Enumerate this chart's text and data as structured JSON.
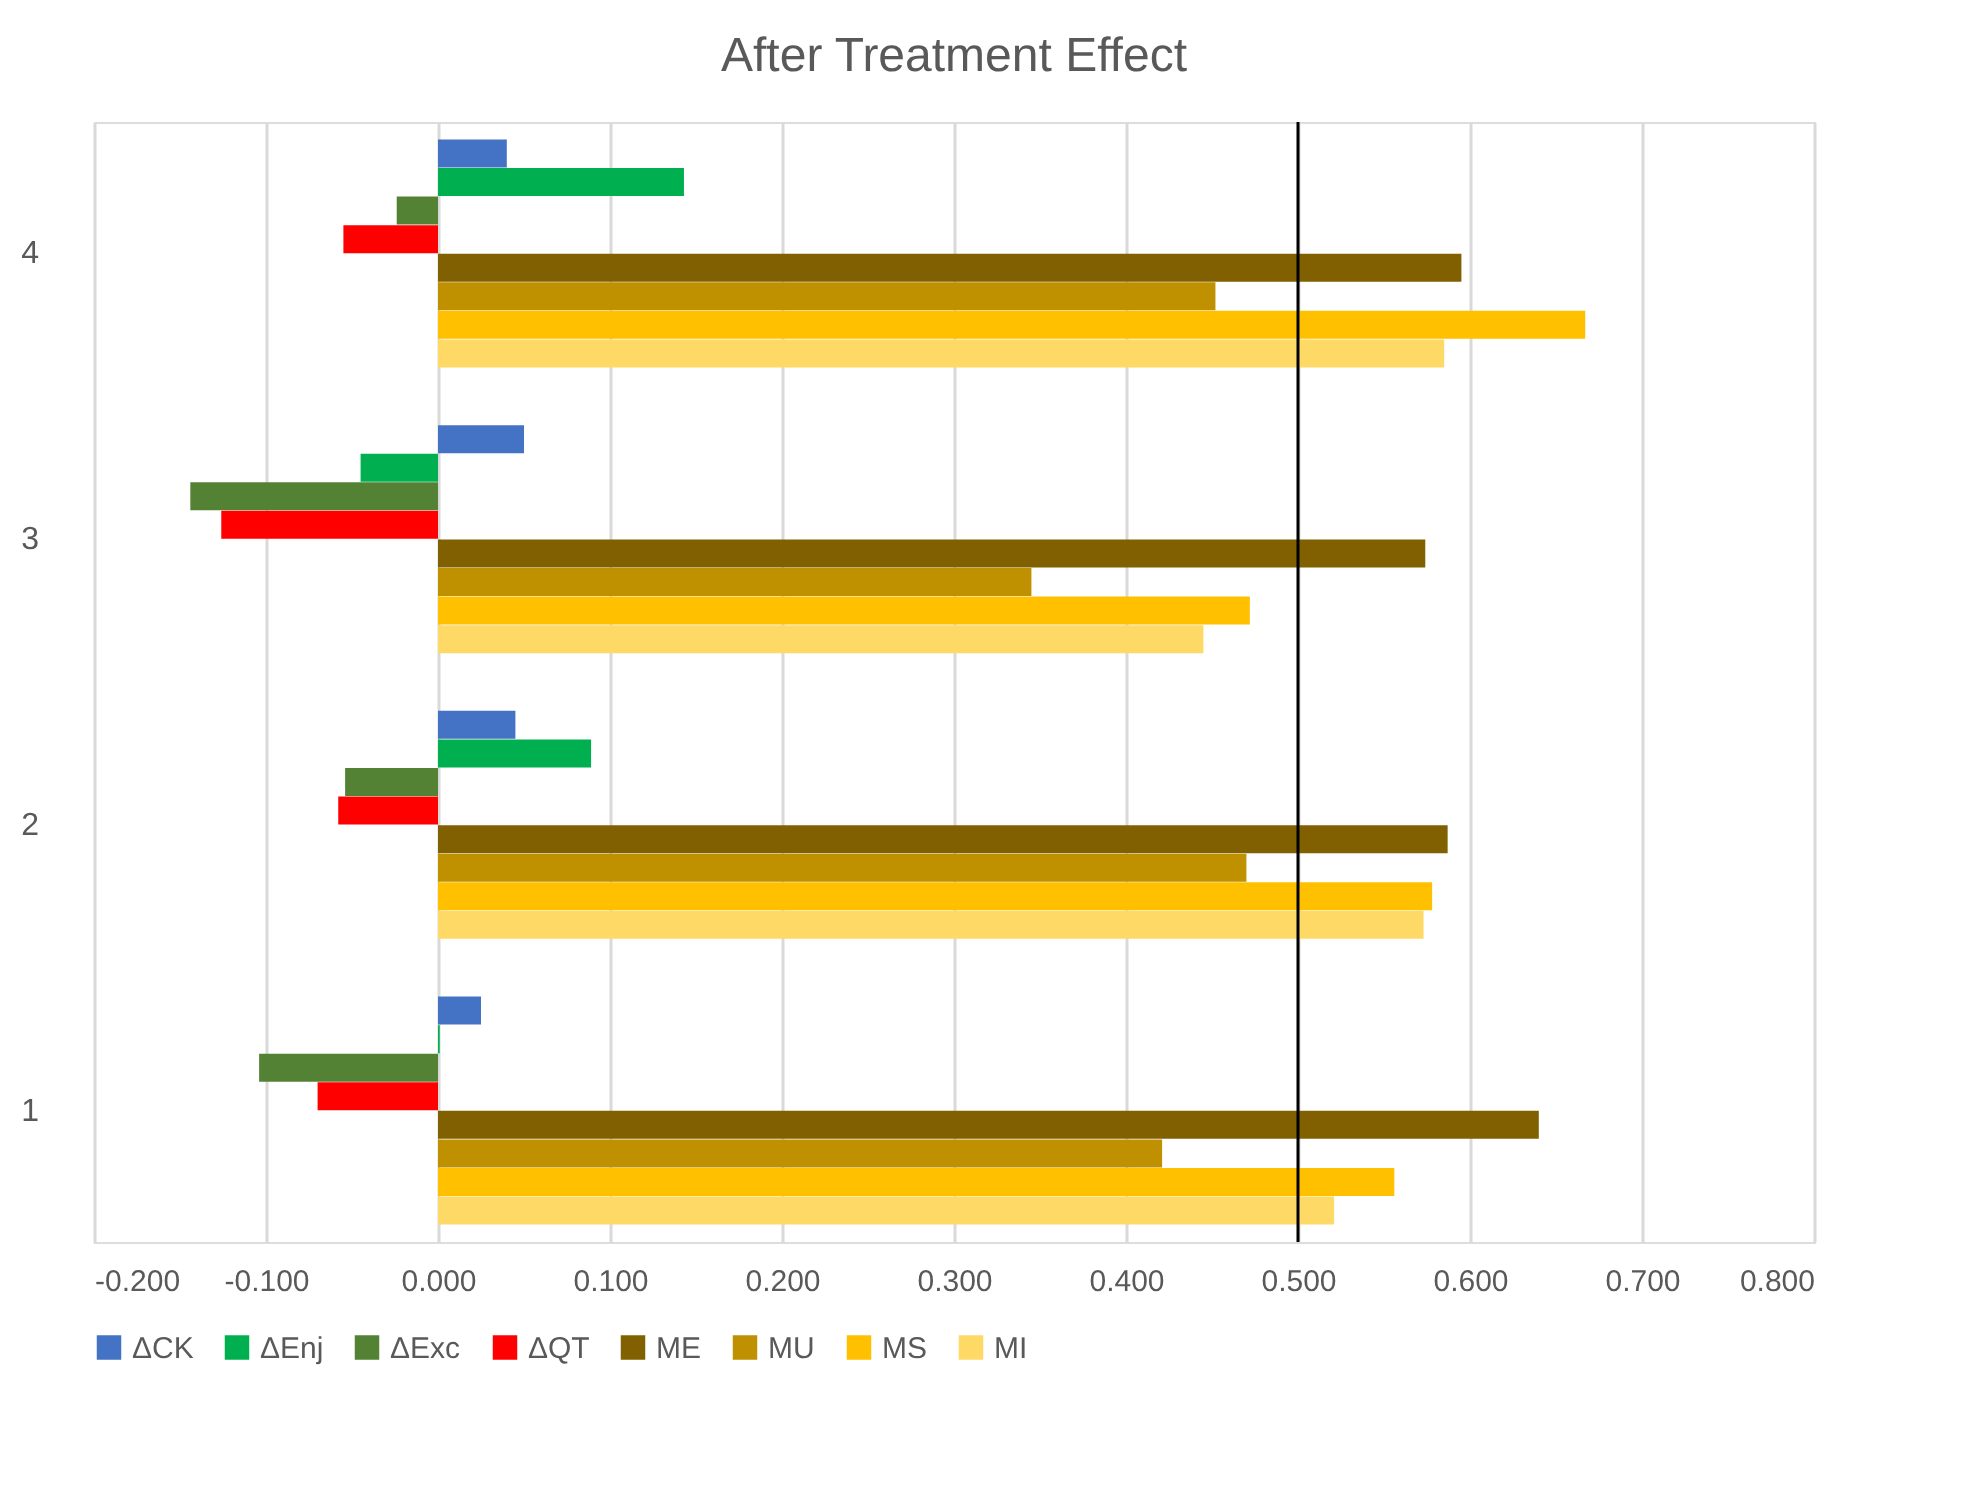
{
  "chart_data": {
    "type": "bar",
    "orientation": "horizontal",
    "title": "After Treatment Effect",
    "categories": [
      "4",
      "3",
      "2",
      "1"
    ],
    "series": [
      {
        "name": "ΔCK",
        "color": "#4472c4",
        "values": [
          0.04,
          0.05,
          0.045,
          0.025
        ]
      },
      {
        "name": "ΔEnj",
        "color": "#00b050",
        "values": [
          0.143,
          -0.045,
          0.089,
          0.001
        ]
      },
      {
        "name": "ΔExc",
        "color": "#548235",
        "values": [
          -0.024,
          -0.144,
          -0.054,
          -0.104
        ]
      },
      {
        "name": "ΔQT",
        "color": "#ff0000",
        "values": [
          -0.055,
          -0.126,
          -0.058,
          -0.07
        ]
      },
      {
        "name": "ME",
        "color": "#806000",
        "values": [
          0.595,
          0.574,
          0.587,
          0.64
        ]
      },
      {
        "name": "MU",
        "color": "#bf9000",
        "values": [
          0.452,
          0.345,
          0.47,
          0.421
        ]
      },
      {
        "name": "MS",
        "color": "#ffc000",
        "values": [
          0.667,
          0.472,
          0.578,
          0.556
        ]
      },
      {
        "name": "MI",
        "color": "#ffd966",
        "values": [
          0.585,
          0.445,
          0.573,
          0.521
        ]
      }
    ],
    "xlim": [
      -0.2,
      0.8
    ],
    "xticks": [
      {
        "value": -0.2,
        "label": "-0.200"
      },
      {
        "value": -0.1,
        "label": "-0.100"
      },
      {
        "value": 0,
        "label": "0.000"
      },
      {
        "value": 0.1,
        "label": "0.100"
      },
      {
        "value": 0.2,
        "label": "0.200"
      },
      {
        "value": 0.3,
        "label": "0.300"
      },
      {
        "value": 0.4,
        "label": "0.400"
      },
      {
        "value": 0.5,
        "label": "0.500"
      },
      {
        "value": 0.6,
        "label": "0.600"
      },
      {
        "value": 0.7,
        "label": "0.700"
      },
      {
        "value": 0.8,
        "label": "0.800"
      }
    ],
    "ref_lines": [
      {
        "axis": "x",
        "value": 0.5,
        "color": "#000000"
      }
    ],
    "grid": "x",
    "legend": "bottom"
  }
}
